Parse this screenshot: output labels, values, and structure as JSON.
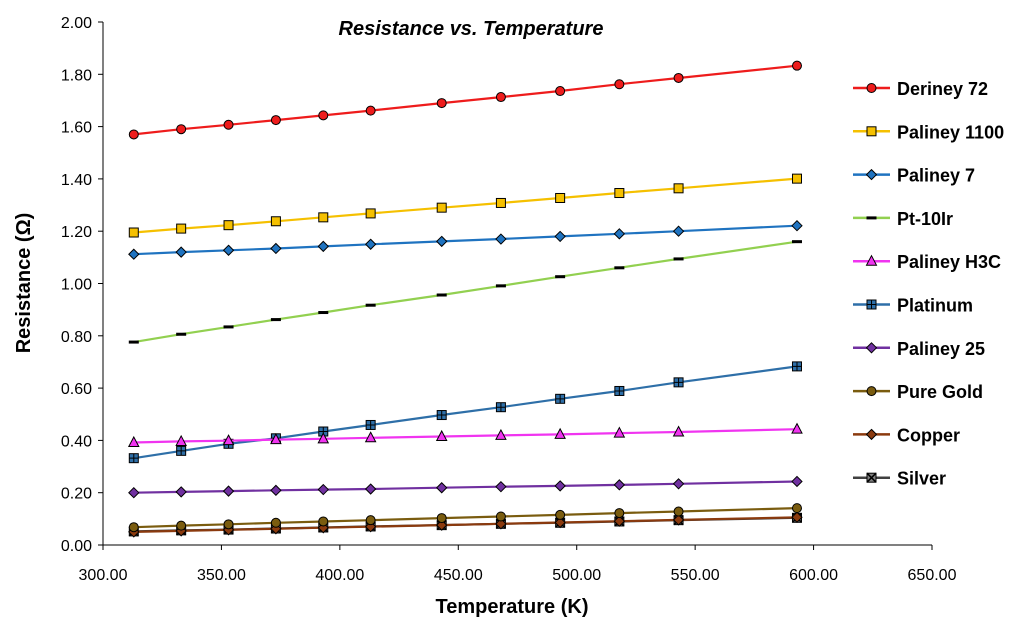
{
  "chart_data": {
    "type": "line",
    "title": "Resistance vs. Temperature",
    "xlabel": "Temperature (K)",
    "ylabel": "Resistance (Ω)",
    "xlim": [
      300,
      650
    ],
    "ylim": [
      0,
      2
    ],
    "xticks": [
      "300.00",
      "350.00",
      "400.00",
      "450.00",
      "500.00",
      "550.00",
      "600.00",
      "650.00"
    ],
    "yticks": [
      "0.00",
      "0.20",
      "0.40",
      "0.60",
      "0.80",
      "1.00",
      "1.20",
      "1.40",
      "1.60",
      "1.80",
      "2.00"
    ],
    "grid": false,
    "legend_position": "right",
    "x": [
      313,
      333,
      353,
      373,
      393,
      413,
      443,
      468,
      493,
      518,
      543,
      593
    ],
    "series": [
      {
        "name": "Deriney 72",
        "color": "#ee1c1c",
        "marker": "circle",
        "fill": "#ee1c1c",
        "values": [
          1.57,
          1.59,
          1.607,
          1.625,
          1.643,
          1.661,
          1.69,
          1.713,
          1.736,
          1.762,
          1.786,
          1.833
        ]
      },
      {
        "name": "Paliney 1100",
        "color": "#f5c000",
        "marker": "square",
        "fill": "#f5c000",
        "values": [
          1.195,
          1.21,
          1.223,
          1.238,
          1.253,
          1.268,
          1.29,
          1.308,
          1.327,
          1.346,
          1.364,
          1.401
        ]
      },
      {
        "name": "Paliney 7",
        "color": "#1f73c0",
        "marker": "diamond",
        "fill": "#1f73c0",
        "values": [
          1.112,
          1.12,
          1.127,
          1.134,
          1.142,
          1.15,
          1.161,
          1.17,
          1.18,
          1.19,
          1.2,
          1.221
        ]
      },
      {
        "name": "Pt-10Ir",
        "color": "#92d050",
        "marker": "dash",
        "fill": "#000000",
        "values": [
          0.776,
          0.806,
          0.834,
          0.862,
          0.889,
          0.917,
          0.956,
          0.991,
          1.026,
          1.06,
          1.094,
          1.16
        ]
      },
      {
        "name": "Paliney H3C",
        "color": "#f034f0",
        "marker": "triangle",
        "fill": "#f034f0",
        "values": [
          0.392,
          0.396,
          0.399,
          0.403,
          0.406,
          0.41,
          0.415,
          0.419,
          0.423,
          0.428,
          0.432,
          0.443
        ]
      },
      {
        "name": "Platinum",
        "color": "#2e6fa8",
        "marker": "plus-square",
        "fill": "#2e6fa8",
        "values": [
          0.332,
          0.36,
          0.387,
          0.408,
          0.434,
          0.459,
          0.497,
          0.527,
          0.559,
          0.589,
          0.622,
          0.683
        ]
      },
      {
        "name": "Paliney 25",
        "color": "#7030a0",
        "marker": "diamond",
        "fill": "#7030a0",
        "values": [
          0.2,
          0.203,
          0.206,
          0.209,
          0.212,
          0.214,
          0.219,
          0.223,
          0.226,
          0.23,
          0.234,
          0.243
        ]
      },
      {
        "name": "Pure Gold",
        "color": "#7a5c0f",
        "marker": "circle",
        "fill": "#7a5c0f",
        "values": [
          0.068,
          0.074,
          0.079,
          0.085,
          0.09,
          0.095,
          0.103,
          0.109,
          0.115,
          0.122,
          0.128,
          0.141
        ]
      },
      {
        "name": "Copper",
        "color": "#8b3a0e",
        "marker": "diamond",
        "fill": "#8b3a0e",
        "values": [
          0.05,
          0.054,
          0.058,
          0.062,
          0.066,
          0.07,
          0.076,
          0.081,
          0.086,
          0.091,
          0.096,
          0.106
        ]
      },
      {
        "name": "Silver",
        "color": "#404040",
        "marker": "x-square",
        "fill": "#808080",
        "values": [
          0.052,
          0.056,
          0.059,
          0.063,
          0.067,
          0.071,
          0.076,
          0.081,
          0.085,
          0.09,
          0.095,
          0.104
        ]
      }
    ]
  }
}
